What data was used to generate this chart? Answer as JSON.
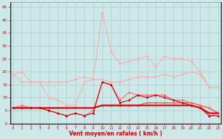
{
  "x": [
    0,
    1,
    2,
    3,
    4,
    5,
    6,
    7,
    8,
    9,
    10,
    11,
    12,
    13,
    14,
    15,
    16,
    17,
    18,
    19,
    20,
    21,
    22,
    23
  ],
  "line_light1": [
    19,
    20,
    16,
    16,
    10,
    9,
    7,
    7,
    16,
    17,
    43,
    28,
    23,
    24,
    25,
    26,
    22,
    26,
    25,
    25,
    24,
    20,
    14,
    14
  ],
  "line_light2": [
    19,
    16,
    16,
    16,
    16,
    16,
    16,
    17,
    18,
    17,
    17,
    16,
    16,
    17,
    18,
    18,
    18,
    19,
    18,
    19,
    20,
    19,
    14,
    14
  ],
  "line_med1": [
    6,
    7,
    6,
    6,
    5,
    4,
    3,
    4,
    3,
    5,
    16,
    15,
    9,
    12,
    11,
    11,
    11,
    11,
    9,
    9,
    8,
    7,
    3,
    4
  ],
  "line_med2": [
    6,
    6,
    6,
    6,
    6,
    6,
    6,
    6,
    6,
    6,
    7,
    7,
    7,
    7,
    7,
    8,
    8,
    8,
    8,
    8,
    8,
    7,
    6,
    4
  ],
  "line_dark1": [
    6,
    6,
    6,
    6,
    6,
    6,
    6,
    6,
    6,
    6,
    7,
    7,
    7,
    7,
    7,
    7,
    7,
    7,
    7,
    7,
    7,
    6,
    4,
    4
  ],
  "line_dark2": [
    6,
    6,
    6,
    6,
    5,
    4,
    3,
    4,
    3,
    4,
    16,
    15,
    8,
    9,
    11,
    10,
    11,
    10,
    9,
    8,
    7,
    6,
    3,
    3
  ],
  "background_color": "#cce8e8",
  "grid_color": "#aacaca",
  "color_light": "#ffaaaa",
  "color_med": "#ff6666",
  "color_dark": "#cc0000",
  "xlabel": "Vent moyen/en rafales ( km/h )",
  "ylabel_ticks": [
    0,
    5,
    10,
    15,
    20,
    25,
    30,
    35,
    40,
    45
  ],
  "xlim": [
    0,
    23
  ],
  "ylim": [
    0,
    47
  ]
}
